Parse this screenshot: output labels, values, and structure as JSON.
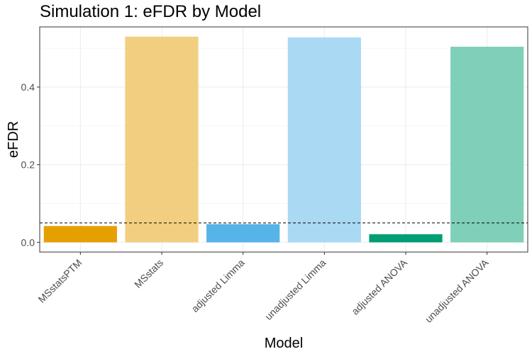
{
  "chart_data": {
    "type": "bar",
    "title": "Simulation 1: eFDR by Model",
    "xlabel": "Model",
    "ylabel": "eFDR",
    "categories": [
      "MSstatsPTM",
      "MSstats",
      "adjusted Limma",
      "unadjusted Limma",
      "adjusted ANOVA",
      "unadjusted ANOVA"
    ],
    "values": [
      0.042,
      0.53,
      0.047,
      0.528,
      0.021,
      0.504
    ],
    "colors": [
      "#E69F00",
      "#F2CF80",
      "#56B4E9",
      "#AAD9F4",
      "#009E73",
      "#80CFB9"
    ],
    "ylim": [
      -0.025,
      0.555
    ],
    "yticks": [
      0.0,
      0.2,
      0.4
    ],
    "ytick_labels": [
      "0.0",
      "0.2",
      "0.4"
    ],
    "reference_line": 0.05,
    "grid": true,
    "legend": "none"
  }
}
